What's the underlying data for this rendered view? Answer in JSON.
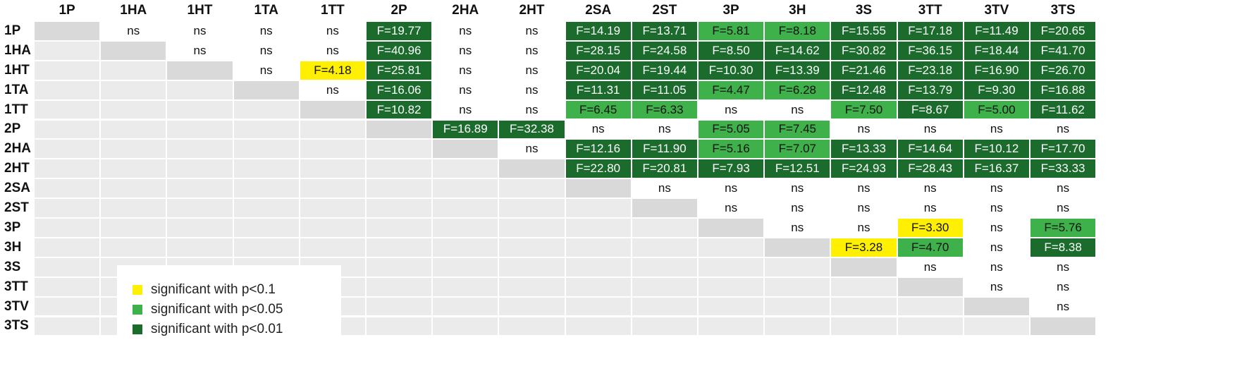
{
  "colors": {
    "p01": "#1a6b2c",
    "p05": "#3fb14b",
    "p10": "#ffef00",
    "diag": "#d9d9d9",
    "lower": "#ebebeb",
    "ns_bg": "#ffffff",
    "text_dark": "#111111",
    "text_light": "#ffffff"
  },
  "legend": [
    {
      "label": "significant with p<0.1",
      "level": "p10"
    },
    {
      "label": "significant with p<0.05",
      "level": "p05"
    },
    {
      "label": "significant with p<0.01",
      "level": "p01"
    }
  ],
  "chart_data": {
    "type": "table",
    "labels": [
      "1P",
      "1HA",
      "1HT",
      "1TA",
      "1TT",
      "2P",
      "2HA",
      "2HT",
      "2SA",
      "2ST",
      "3P",
      "3H",
      "3S",
      "3TT",
      "3TV",
      "3TS"
    ],
    "rows": [
      [
        "",
        "ns",
        "ns",
        "ns",
        "ns",
        "F=19.77",
        "ns",
        "ns",
        "F=14.19",
        "F=13.71",
        "F=5.81",
        "F=8.18",
        "F=15.55",
        "F=17.18",
        "F=11.49",
        "F=20.65"
      ],
      [
        "",
        "",
        "ns",
        "ns",
        "ns",
        "F=40.96",
        "ns",
        "ns",
        "F=28.15",
        "F=24.58",
        "F=8.50",
        "F=14.62",
        "F=30.82",
        "F=36.15",
        "F=18.44",
        "F=41.70"
      ],
      [
        "",
        "",
        "",
        "ns",
        "F=4.18",
        "F=25.81",
        "ns",
        "ns",
        "F=20.04",
        "F=19.44",
        "F=10.30",
        "F=13.39",
        "F=21.46",
        "F=23.18",
        "F=16.90",
        "F=26.70"
      ],
      [
        "",
        "",
        "",
        "",
        "ns",
        "F=16.06",
        "ns",
        "ns",
        "F=11.31",
        "F=11.05",
        "F=4.47",
        "F=6.28",
        "F=12.48",
        "F=13.79",
        "F=9.30",
        "F=16.88"
      ],
      [
        "",
        "",
        "",
        "",
        "",
        "F=10.82",
        "ns",
        "ns",
        "F=6.45",
        "F=6.33",
        "ns",
        "ns",
        "F=7.50",
        "F=8.67",
        "F=5.00",
        "F=11.62"
      ],
      [
        "",
        "",
        "",
        "",
        "",
        "",
        "F=16.89",
        "F=32.38",
        "ns",
        "ns",
        "F=5.05",
        "F=7.45",
        "ns",
        "ns",
        "ns",
        "ns"
      ],
      [
        "",
        "",
        "",
        "",
        "",
        "",
        "",
        "ns",
        "F=12.16",
        "F=11.90",
        "F=5.16",
        "F=7.07",
        "F=13.33",
        "F=14.64",
        "F=10.12",
        "F=17.70"
      ],
      [
        "",
        "",
        "",
        "",
        "",
        "",
        "",
        "",
        "F=22.80",
        "F=20.81",
        "F=7.93",
        "F=12.51",
        "F=24.93",
        "F=28.43",
        "F=16.37",
        "F=33.33"
      ],
      [
        "",
        "",
        "",
        "",
        "",
        "",
        "",
        "",
        "",
        "ns",
        "ns",
        "ns",
        "ns",
        "ns",
        "ns",
        "ns"
      ],
      [
        "",
        "",
        "",
        "",
        "",
        "",
        "",
        "",
        "",
        "",
        "ns",
        "ns",
        "ns",
        "ns",
        "ns",
        "ns"
      ],
      [
        "",
        "",
        "",
        "",
        "",
        "",
        "",
        "",
        "",
        "",
        "",
        "ns",
        "ns",
        "F=3.30",
        "ns",
        "F=5.76"
      ],
      [
        "",
        "",
        "",
        "",
        "",
        "",
        "",
        "",
        "",
        "",
        "",
        "",
        "F=3.28",
        "F=4.70",
        "ns",
        "F=8.38"
      ],
      [
        "",
        "",
        "",
        "",
        "",
        "",
        "",
        "",
        "",
        "",
        "",
        "",
        "",
        "ns",
        "ns",
        "ns"
      ],
      [
        "",
        "",
        "",
        "",
        "",
        "",
        "",
        "",
        "",
        "",
        "",
        "",
        "",
        "",
        "ns",
        "ns"
      ],
      [
        "",
        "",
        "",
        "",
        "",
        "",
        "",
        "",
        "",
        "",
        "",
        "",
        "",
        "",
        "",
        "ns"
      ],
      [
        "",
        "",
        "",
        "",
        "",
        "",
        "",
        "",
        "",
        "",
        "",
        "",
        "",
        "",
        "",
        ""
      ]
    ],
    "significance": [
      [
        "",
        "ns",
        "ns",
        "ns",
        "ns",
        "p01",
        "ns",
        "ns",
        "p01",
        "p01",
        "p05",
        "p05",
        "p01",
        "p01",
        "p01",
        "p01"
      ],
      [
        "",
        "",
        "ns",
        "ns",
        "ns",
        "p01",
        "ns",
        "ns",
        "p01",
        "p01",
        "p01",
        "p01",
        "p01",
        "p01",
        "p01",
        "p01"
      ],
      [
        "",
        "",
        "",
        "ns",
        "p10",
        "p01",
        "ns",
        "ns",
        "p01",
        "p01",
        "p01",
        "p01",
        "p01",
        "p01",
        "p01",
        "p01"
      ],
      [
        "",
        "",
        "",
        "",
        "ns",
        "p01",
        "ns",
        "ns",
        "p01",
        "p01",
        "p05",
        "p05",
        "p01",
        "p01",
        "p01",
        "p01"
      ],
      [
        "",
        "",
        "",
        "",
        "",
        "p01",
        "ns",
        "ns",
        "p05",
        "p05",
        "ns",
        "ns",
        "p05",
        "p01",
        "p05",
        "p01"
      ],
      [
        "",
        "",
        "",
        "",
        "",
        "",
        "p01",
        "p01",
        "ns",
        "ns",
        "p05",
        "p05",
        "ns",
        "ns",
        "ns",
        "ns"
      ],
      [
        "",
        "",
        "",
        "",
        "",
        "",
        "",
        "ns",
        "p01",
        "p01",
        "p05",
        "p05",
        "p01",
        "p01",
        "p01",
        "p01"
      ],
      [
        "",
        "",
        "",
        "",
        "",
        "",
        "",
        "",
        "p01",
        "p01",
        "p01",
        "p01",
        "p01",
        "p01",
        "p01",
        "p01"
      ],
      [
        "",
        "",
        "",
        "",
        "",
        "",
        "",
        "",
        "",
        "ns",
        "ns",
        "ns",
        "ns",
        "ns",
        "ns",
        "ns"
      ],
      [
        "",
        "",
        "",
        "",
        "",
        "",
        "",
        "",
        "",
        "",
        "ns",
        "ns",
        "ns",
        "ns",
        "ns",
        "ns"
      ],
      [
        "",
        "",
        "",
        "",
        "",
        "",
        "",
        "",
        "",
        "",
        "",
        "ns",
        "ns",
        "p10",
        "ns",
        "p05"
      ],
      [
        "",
        "",
        "",
        "",
        "",
        "",
        "",
        "",
        "",
        "",
        "",
        "",
        "p10",
        "p05",
        "ns",
        "p01"
      ],
      [
        "",
        "",
        "",
        "",
        "",
        "",
        "",
        "",
        "",
        "",
        "",
        "",
        "",
        "ns",
        "ns",
        "ns"
      ],
      [
        "",
        "",
        "",
        "",
        "",
        "",
        "",
        "",
        "",
        "",
        "",
        "",
        "",
        "",
        "ns",
        "ns"
      ],
      [
        "",
        "",
        "",
        "",
        "",
        "",
        "",
        "",
        "",
        "",
        "",
        "",
        "",
        "",
        "",
        "ns"
      ],
      [
        "",
        "",
        "",
        "",
        "",
        "",
        "",
        "",
        "",
        "",
        "",
        "",
        "",
        "",
        "",
        ""
      ]
    ]
  }
}
